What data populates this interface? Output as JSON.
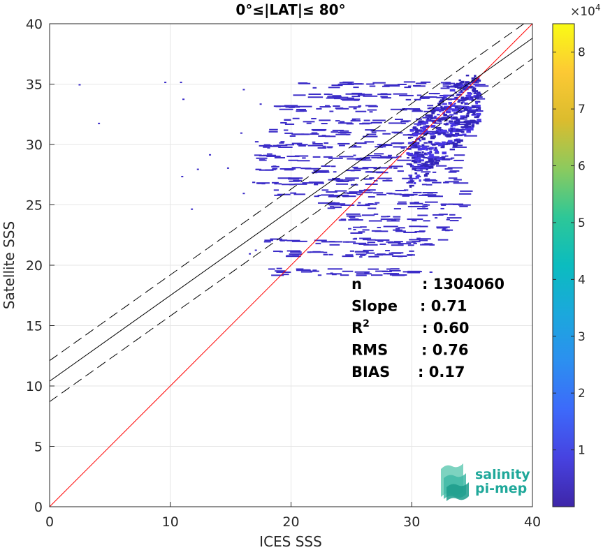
{
  "chart_data": {
    "type": "heatmap",
    "title": "0°≤|LAT|≤ 80°",
    "xlabel": "ICES SSS",
    "ylabel": "Satellite SSS",
    "xlim": [
      0,
      40
    ],
    "ylim": [
      0,
      40
    ],
    "xticks": [
      0,
      10,
      20,
      30,
      40
    ],
    "yticks": [
      0,
      5,
      10,
      15,
      20,
      25,
      30,
      35,
      40
    ],
    "grid": true,
    "colorbar": {
      "ticks": [
        1,
        2,
        3,
        4,
        5,
        6,
        7,
        8
      ],
      "multiplier": "×10",
      "exponent": "4",
      "range": [
        0,
        8.5
      ],
      "colormap": "parula"
    },
    "lines": [
      {
        "role": "identity",
        "slope": 1,
        "intercept": 0,
        "color": "#ff0000",
        "style": "solid"
      },
      {
        "role": "regression",
        "slope": 0.71,
        "intercept": 10.4,
        "color": "#000000",
        "style": "solid"
      },
      {
        "role": "upper-bound",
        "slope": 0.71,
        "intercept": 12.1,
        "color": "#000000",
        "style": "dashed"
      },
      {
        "role": "lower-bound",
        "slope": 0.71,
        "intercept": 8.7,
        "color": "#000000",
        "style": "dashed"
      }
    ],
    "density_bands": [
      {
        "y": 35,
        "x": [
          20.5,
          35.5
        ]
      },
      {
        "y": 34,
        "x": [
          19.5,
          35.5
        ]
      },
      {
        "y": 33,
        "x": [
          18.5,
          35.0
        ]
      },
      {
        "y": 32,
        "x": [
          19.0,
          35.0
        ]
      },
      {
        "y": 31,
        "x": [
          18.0,
          34.5
        ]
      },
      {
        "y": 30,
        "x": [
          17.0,
          34.5
        ]
      },
      {
        "y": 29,
        "x": [
          16.0,
          34.0
        ]
      },
      {
        "y": 28,
        "x": [
          17.0,
          34.0
        ]
      },
      {
        "y": 27,
        "x": [
          16.5,
          34.0
        ]
      },
      {
        "y": 26,
        "x": [
          18.5,
          34.0
        ]
      },
      {
        "y": 25,
        "x": [
          21.5,
          34.0
        ]
      },
      {
        "y": 24,
        "x": [
          23.5,
          33.5
        ]
      },
      {
        "y": 23,
        "x": [
          24.5,
          33.0
        ]
      },
      {
        "y": 22,
        "x": [
          17.5,
          32.5
        ]
      },
      {
        "y": 21,
        "x": [
          18.5,
          31.0
        ]
      },
      {
        "y": 19.5,
        "x": [
          18.0,
          31.5
        ]
      }
    ],
    "stats": [
      {
        "label": "n",
        "value": ": 1304060"
      },
      {
        "label": "Slope",
        "value": ": 0.71"
      },
      {
        "label": "R",
        "sup": "2",
        "value": ": 0.60"
      },
      {
        "label": "RMS",
        "value": ": 0.76"
      },
      {
        "label": "BIAS",
        "value": ": 0.17"
      }
    ]
  },
  "logo": {
    "line1": "salinity",
    "line2": "pi-mep"
  }
}
